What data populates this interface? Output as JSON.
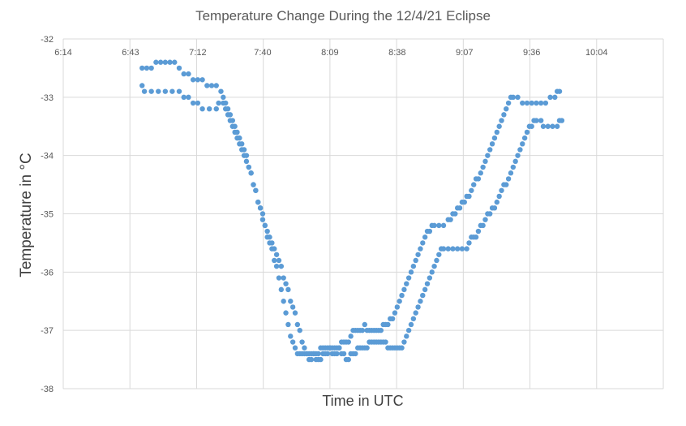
{
  "chart_data": {
    "type": "scatter",
    "title": "Temperature Change During the 12/4/21 Eclipse",
    "xlabel": "Time in UTC",
    "ylabel": "Temperature in °C",
    "x_tick_labels": [
      "6:14",
      "6:43",
      "7:12",
      "7:40",
      "8:09",
      "8:38",
      "9:07",
      "9:36",
      "10:04"
    ],
    "y_ticks": [
      -32,
      -33,
      -34,
      -35,
      -36,
      -37,
      -38
    ],
    "ylim": [
      -38,
      -32
    ],
    "grid": true,
    "legend": "none",
    "marker_color": "#5b9bd5",
    "series": [
      {
        "points": [
          [
            "6:48",
            -32.8
          ],
          [
            "6:49",
            -32.9
          ],
          [
            "6:52",
            -32.9
          ],
          [
            "6:55",
            -32.9
          ],
          [
            "6:58",
            -32.9
          ],
          [
            "7:01",
            -32.9
          ],
          [
            "7:04",
            -32.9
          ],
          [
            "7:06",
            -33.0
          ],
          [
            "7:08",
            -33.0
          ],
          [
            "7:10",
            -33.1
          ],
          [
            "7:12",
            -33.1
          ],
          [
            "7:14",
            -33.2
          ],
          [
            "7:17",
            -33.2
          ],
          [
            "7:20",
            -33.2
          ],
          [
            "7:21",
            -33.1
          ],
          [
            "7:23",
            -33.1
          ],
          [
            "7:24",
            -33.2
          ],
          [
            "7:25",
            -33.3
          ],
          [
            "7:26",
            -33.4
          ],
          [
            "7:27",
            -33.5
          ],
          [
            "7:28",
            -33.6
          ],
          [
            "7:29",
            -33.7
          ],
          [
            "7:30",
            -33.8
          ],
          [
            "7:31",
            -33.9
          ],
          [
            "7:32",
            -34.0
          ],
          [
            "7:33",
            -34.1
          ],
          [
            "7:34",
            -34.2
          ],
          [
            "7:35",
            -34.3
          ],
          [
            "7:36",
            -34.5
          ],
          [
            "7:37",
            -34.6
          ],
          [
            "7:38",
            -34.8
          ],
          [
            "7:39",
            -34.9
          ],
          [
            "7:40",
            -35.0
          ],
          [
            "7:41",
            -35.2
          ],
          [
            "7:42",
            -35.3
          ],
          [
            "7:43",
            -35.4
          ],
          [
            "7:44",
            -35.5
          ],
          [
            "7:45",
            -35.6
          ],
          [
            "7:46",
            -35.7
          ],
          [
            "7:47",
            -35.8
          ],
          [
            "7:48",
            -35.9
          ],
          [
            "7:49",
            -36.1
          ],
          [
            "7:50",
            -36.2
          ],
          [
            "7:51",
            -36.3
          ],
          [
            "7:52",
            -36.5
          ],
          [
            "7:53",
            -36.6
          ],
          [
            "7:54",
            -36.7
          ],
          [
            "7:55",
            -36.9
          ],
          [
            "7:56",
            -37.0
          ],
          [
            "7:57",
            -37.2
          ],
          [
            "7:58",
            -37.3
          ],
          [
            "7:59",
            -37.4
          ],
          [
            "8:00",
            -37.4
          ],
          [
            "8:01",
            -37.4
          ],
          [
            "8:02",
            -37.4
          ],
          [
            "8:03",
            -37.5
          ],
          [
            "8:04",
            -37.5
          ],
          [
            "8:05",
            -37.5
          ],
          [
            "8:06",
            -37.4
          ],
          [
            "8:07",
            -37.4
          ],
          [
            "8:08",
            -37.4
          ],
          [
            "8:09",
            -37.3
          ],
          [
            "8:10",
            -37.3
          ],
          [
            "8:11",
            -37.3
          ],
          [
            "8:12",
            -37.3
          ],
          [
            "8:13",
            -37.3
          ],
          [
            "8:14",
            -37.4
          ],
          [
            "8:15",
            -37.4
          ],
          [
            "8:16",
            -37.5
          ],
          [
            "8:17",
            -37.5
          ],
          [
            "8:18",
            -37.4
          ],
          [
            "8:19",
            -37.4
          ],
          [
            "8:20",
            -37.4
          ],
          [
            "8:21",
            -37.3
          ],
          [
            "8:22",
            -37.3
          ],
          [
            "8:23",
            -37.3
          ],
          [
            "8:24",
            -37.3
          ],
          [
            "8:25",
            -37.3
          ],
          [
            "8:26",
            -37.2
          ],
          [
            "8:27",
            -37.2
          ],
          [
            "8:28",
            -37.2
          ],
          [
            "8:29",
            -37.2
          ],
          [
            "8:30",
            -37.2
          ],
          [
            "8:31",
            -37.2
          ],
          [
            "8:32",
            -37.2
          ],
          [
            "8:33",
            -37.2
          ],
          [
            "8:34",
            -37.3
          ],
          [
            "8:35",
            -37.3
          ],
          [
            "8:36",
            -37.3
          ],
          [
            "8:37",
            -37.3
          ],
          [
            "8:38",
            -37.3
          ],
          [
            "8:39",
            -37.3
          ],
          [
            "8:40",
            -37.3
          ],
          [
            "8:41",
            -37.2
          ],
          [
            "8:42",
            -37.1
          ],
          [
            "8:43",
            -37.0
          ],
          [
            "8:44",
            -36.9
          ],
          [
            "8:45",
            -36.8
          ],
          [
            "8:46",
            -36.7
          ],
          [
            "8:47",
            -36.6
          ],
          [
            "8:48",
            -36.5
          ],
          [
            "8:49",
            -36.4
          ],
          [
            "8:50",
            -36.3
          ],
          [
            "8:51",
            -36.2
          ],
          [
            "8:52",
            -36.1
          ],
          [
            "8:53",
            -36.0
          ],
          [
            "8:54",
            -35.9
          ],
          [
            "8:55",
            -35.8
          ],
          [
            "8:56",
            -35.7
          ],
          [
            "8:57",
            -35.6
          ],
          [
            "8:58",
            -35.6
          ],
          [
            "9:00",
            -35.6
          ],
          [
            "9:02",
            -35.6
          ],
          [
            "9:04",
            -35.6
          ],
          [
            "9:06",
            -35.6
          ],
          [
            "9:08",
            -35.6
          ],
          [
            "9:09",
            -35.5
          ],
          [
            "9:10",
            -35.4
          ],
          [
            "9:11",
            -35.4
          ],
          [
            "9:12",
            -35.4
          ],
          [
            "9:13",
            -35.3
          ],
          [
            "9:14",
            -35.2
          ],
          [
            "9:15",
            -35.2
          ],
          [
            "9:16",
            -35.1
          ],
          [
            "9:17",
            -35.0
          ],
          [
            "9:18",
            -35.0
          ],
          [
            "9:19",
            -34.9
          ],
          [
            "9:20",
            -34.9
          ],
          [
            "9:21",
            -34.8
          ],
          [
            "9:22",
            -34.7
          ],
          [
            "9:23",
            -34.6
          ],
          [
            "9:24",
            -34.5
          ],
          [
            "9:25",
            -34.5
          ],
          [
            "9:26",
            -34.4
          ],
          [
            "9:27",
            -34.3
          ],
          [
            "9:28",
            -34.2
          ],
          [
            "9:29",
            -34.1
          ],
          [
            "9:30",
            -34.0
          ],
          [
            "9:31",
            -33.9
          ],
          [
            "9:32",
            -33.8
          ],
          [
            "9:33",
            -33.7
          ],
          [
            "9:34",
            -33.6
          ],
          [
            "9:35",
            -33.5
          ],
          [
            "9:36",
            -33.5
          ],
          [
            "9:37",
            -33.4
          ],
          [
            "9:38",
            -33.4
          ],
          [
            "9:40",
            -33.4
          ],
          [
            "9:41",
            -33.5
          ],
          [
            "9:43",
            -33.5
          ],
          [
            "9:45",
            -33.5
          ],
          [
            "9:47",
            -33.5
          ],
          [
            "9:48",
            -33.4
          ],
          [
            "9:49",
            -33.4
          ]
        ]
      },
      {
        "points": [
          [
            "6:48",
            -32.5
          ],
          [
            "6:50",
            -32.5
          ],
          [
            "6:52",
            -32.5
          ],
          [
            "6:54",
            -32.4
          ],
          [
            "6:56",
            -32.4
          ],
          [
            "6:58",
            -32.4
          ],
          [
            "7:00",
            -32.4
          ],
          [
            "7:02",
            -32.4
          ],
          [
            "7:04",
            -32.5
          ],
          [
            "7:06",
            -32.6
          ],
          [
            "7:08",
            -32.6
          ],
          [
            "7:10",
            -32.7
          ],
          [
            "7:12",
            -32.7
          ],
          [
            "7:14",
            -32.7
          ],
          [
            "7:16",
            -32.8
          ],
          [
            "7:18",
            -32.8
          ],
          [
            "7:20",
            -32.8
          ],
          [
            "7:22",
            -32.9
          ],
          [
            "7:23",
            -33.0
          ],
          [
            "7:24",
            -33.1
          ],
          [
            "7:25",
            -33.2
          ],
          [
            "7:26",
            -33.3
          ],
          [
            "7:27",
            -33.4
          ],
          [
            "7:28",
            -33.5
          ],
          [
            "7:29",
            -33.6
          ],
          [
            "7:30",
            -33.7
          ],
          [
            "7:31",
            -33.8
          ],
          [
            "7:32",
            -33.9
          ],
          [
            "7:33",
            -34.0
          ],
          [
            "7:34",
            -34.2
          ],
          [
            "7:35",
            -34.3
          ],
          [
            "7:36",
            -34.5
          ],
          [
            "7:37",
            -34.6
          ],
          [
            "7:38",
            -34.8
          ],
          [
            "7:39",
            -34.9
          ],
          [
            "7:40",
            -35.1
          ],
          [
            "7:41",
            -35.2
          ],
          [
            "7:42",
            -35.4
          ],
          [
            "7:43",
            -35.5
          ],
          [
            "7:44",
            -35.6
          ],
          [
            "7:45",
            -35.8
          ],
          [
            "7:46",
            -35.9
          ],
          [
            "7:47",
            -36.1
          ],
          [
            "7:48",
            -36.3
          ],
          [
            "7:49",
            -36.5
          ],
          [
            "7:50",
            -36.7
          ],
          [
            "7:51",
            -36.9
          ],
          [
            "7:52",
            -37.1
          ],
          [
            "7:53",
            -37.2
          ],
          [
            "7:54",
            -37.3
          ],
          [
            "7:55",
            -37.4
          ],
          [
            "7:56",
            -37.4
          ],
          [
            "7:57",
            -37.4
          ],
          [
            "7:58",
            -37.4
          ],
          [
            "7:59",
            -37.4
          ],
          [
            "8:00",
            -37.5
          ],
          [
            "8:01",
            -37.5
          ],
          [
            "8:02",
            -37.4
          ],
          [
            "8:03",
            -37.4
          ],
          [
            "8:04",
            -37.4
          ],
          [
            "8:05",
            -37.3
          ],
          [
            "8:06",
            -37.3
          ],
          [
            "8:07",
            -37.3
          ],
          [
            "8:08",
            -37.3
          ],
          [
            "8:09",
            -37.3
          ],
          [
            "8:10",
            -37.4
          ],
          [
            "8:11",
            -37.4
          ],
          [
            "8:12",
            -37.4
          ],
          [
            "8:13",
            -37.3
          ],
          [
            "8:14",
            -37.2
          ],
          [
            "8:15",
            -37.2
          ],
          [
            "8:16",
            -37.2
          ],
          [
            "8:17",
            -37.2
          ],
          [
            "8:18",
            -37.1
          ],
          [
            "8:19",
            -37.0
          ],
          [
            "8:20",
            -37.0
          ],
          [
            "8:21",
            -37.0
          ],
          [
            "8:22",
            -37.0
          ],
          [
            "8:23",
            -37.0
          ],
          [
            "8:24",
            -36.9
          ],
          [
            "8:25",
            -37.0
          ],
          [
            "8:26",
            -37.0
          ],
          [
            "8:27",
            -37.0
          ],
          [
            "8:28",
            -37.0
          ],
          [
            "8:29",
            -37.0
          ],
          [
            "8:30",
            -37.0
          ],
          [
            "8:31",
            -37.0
          ],
          [
            "8:32",
            -36.9
          ],
          [
            "8:33",
            -36.9
          ],
          [
            "8:34",
            -36.9
          ],
          [
            "8:35",
            -36.8
          ],
          [
            "8:36",
            -36.8
          ],
          [
            "8:37",
            -36.7
          ],
          [
            "8:38",
            -36.6
          ],
          [
            "8:39",
            -36.5
          ],
          [
            "8:40",
            -36.4
          ],
          [
            "8:41",
            -36.3
          ],
          [
            "8:42",
            -36.2
          ],
          [
            "8:43",
            -36.1
          ],
          [
            "8:44",
            -36.0
          ],
          [
            "8:45",
            -35.9
          ],
          [
            "8:46",
            -35.8
          ],
          [
            "8:47",
            -35.7
          ],
          [
            "8:48",
            -35.6
          ],
          [
            "8:49",
            -35.5
          ],
          [
            "8:50",
            -35.4
          ],
          [
            "8:51",
            -35.3
          ],
          [
            "8:52",
            -35.3
          ],
          [
            "8:53",
            -35.2
          ],
          [
            "8:54",
            -35.2
          ],
          [
            "8:56",
            -35.2
          ],
          [
            "8:58",
            -35.2
          ],
          [
            "9:00",
            -35.1
          ],
          [
            "9:01",
            -35.1
          ],
          [
            "9:02",
            -35.0
          ],
          [
            "9:03",
            -35.0
          ],
          [
            "9:04",
            -34.9
          ],
          [
            "9:05",
            -34.9
          ],
          [
            "9:06",
            -34.8
          ],
          [
            "9:07",
            -34.8
          ],
          [
            "9:08",
            -34.7
          ],
          [
            "9:09",
            -34.7
          ],
          [
            "9:10",
            -34.6
          ],
          [
            "9:11",
            -34.5
          ],
          [
            "9:12",
            -34.4
          ],
          [
            "9:13",
            -34.4
          ],
          [
            "9:14",
            -34.3
          ],
          [
            "9:15",
            -34.2
          ],
          [
            "9:16",
            -34.1
          ],
          [
            "9:17",
            -34.0
          ],
          [
            "9:18",
            -33.9
          ],
          [
            "9:19",
            -33.8
          ],
          [
            "9:20",
            -33.7
          ],
          [
            "9:21",
            -33.6
          ],
          [
            "9:22",
            -33.5
          ],
          [
            "9:23",
            -33.4
          ],
          [
            "9:24",
            -33.3
          ],
          [
            "9:25",
            -33.2
          ],
          [
            "9:26",
            -33.1
          ],
          [
            "9:27",
            -33.0
          ],
          [
            "9:28",
            -33.0
          ],
          [
            "9:30",
            -33.0
          ],
          [
            "9:32",
            -33.1
          ],
          [
            "9:34",
            -33.1
          ],
          [
            "9:36",
            -33.1
          ],
          [
            "9:38",
            -33.1
          ],
          [
            "9:40",
            -33.1
          ],
          [
            "9:42",
            -33.1
          ],
          [
            "9:44",
            -33.0
          ],
          [
            "9:46",
            -33.0
          ],
          [
            "9:47",
            -32.9
          ],
          [
            "9:48",
            -32.9
          ]
        ]
      }
    ]
  }
}
